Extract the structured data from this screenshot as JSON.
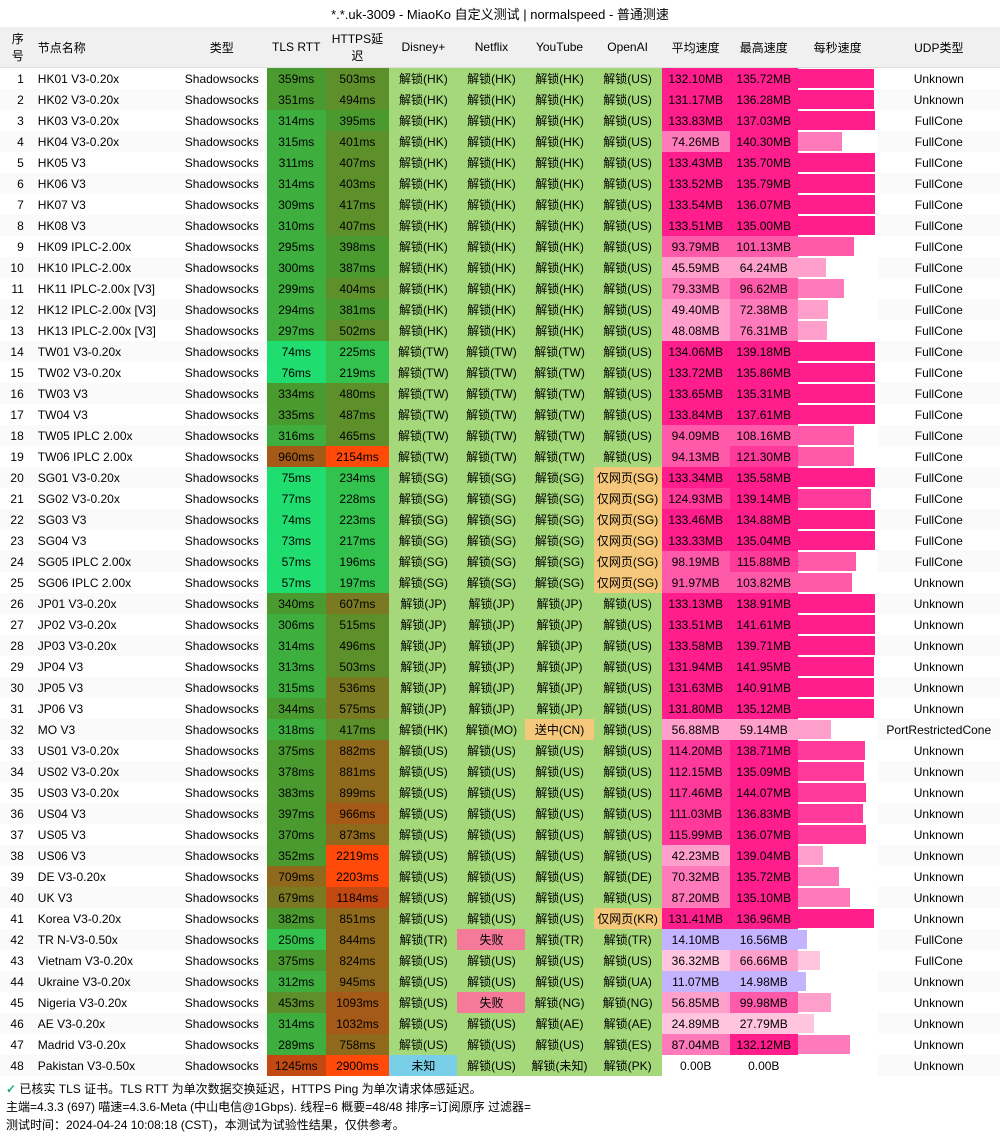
{
  "title": "*.*.uk-3009 - MiaoKo 自定义测试 | normalspeed - 普通测速",
  "headers": [
    "序号",
    "节点名称",
    "类型",
    "TLS RTT",
    "HTTPS延迟",
    "Disney+",
    "Netflix",
    "YouTube",
    "OpenAI",
    "平均速度",
    "最高速度",
    "每秒速度",
    "UDP类型"
  ],
  "colors": {
    "latency_scale": [
      {
        "max": 100,
        "bg": "#1fdd6e"
      },
      {
        "max": 260,
        "bg": "#32c24d"
      },
      {
        "max": 320,
        "bg": "#3eae3e"
      },
      {
        "max": 400,
        "bg": "#4a9a30"
      },
      {
        "max": 520,
        "bg": "#5d8f2b"
      },
      {
        "max": 700,
        "bg": "#7a7a23"
      },
      {
        "max": 950,
        "bg": "#8f6a1d"
      },
      {
        "max": 1100,
        "bg": "#a55a17"
      },
      {
        "max": 1300,
        "bg": "#c24a12"
      },
      {
        "max": 99999,
        "bg": "#ff4a0a"
      }
    ],
    "unlock_ok": "#a5d87a",
    "unlock_web": "#f5c77a",
    "unlock_fail": "#f57a9a",
    "unlock_mid": "#c5e59a",
    "unlock_unknown": "#7acfe8",
    "speed_scale": [
      {
        "min": 130,
        "bg": "#ff1e8c"
      },
      {
        "min": 110,
        "bg": "#ff3a9a"
      },
      {
        "min": 90,
        "bg": "#ff5aaa"
      },
      {
        "min": 70,
        "bg": "#ff7aba"
      },
      {
        "min": 40,
        "bg": "#ffa0cc"
      },
      {
        "min": 20,
        "bg": "#ffc4de"
      },
      {
        "min": 10,
        "bg": "#c4b4ff"
      },
      {
        "min": 0.01,
        "bg": "#e0d8ff"
      },
      {
        "min": 0,
        "bg": "#ffffff"
      }
    ],
    "chart_bar": "#ff1e8c"
  },
  "footer": {
    "tls_note": "已核实 TLS 证书。TLS RTT 为单次数据交换延迟，HTTPS Ping 为单次请求体感延迟。",
    "env": "主端=4.3.3 (697) 喵速=4.3.6-Meta (中山电信@1Gbps). 线程=6 概要=48/48 排序=订阅原序 过滤器=",
    "time": "测试时间：2024-04-24 10:08:18 (CST)，本测试为试验性结果，仅供参考。"
  },
  "rows": [
    {
      "i": 1,
      "name": "HK01 V3-0.20x",
      "type": "Shadowsocks",
      "tls": 359,
      "https": 503,
      "d": "解锁(HK)",
      "n": "解锁(HK)",
      "y": "解锁(HK)",
      "o": "解锁(US)",
      "avg": 132.1,
      "max": 135.72,
      "chart": 96,
      "udp": "Unknown"
    },
    {
      "i": 2,
      "name": "HK02 V3-0.20x",
      "type": "Shadowsocks",
      "tls": 351,
      "https": 494,
      "d": "解锁(HK)",
      "n": "解锁(HK)",
      "y": "解锁(HK)",
      "o": "解锁(US)",
      "avg": 131.17,
      "max": 136.28,
      "chart": 95,
      "udp": "Unknown"
    },
    {
      "i": 3,
      "name": "HK03 V3-0.20x",
      "type": "Shadowsocks",
      "tls": 314,
      "https": 395,
      "d": "解锁(HK)",
      "n": "解锁(HK)",
      "y": "解锁(HK)",
      "o": "解锁(US)",
      "avg": 133.83,
      "max": 137.03,
      "chart": 97,
      "udp": "FullCone"
    },
    {
      "i": 4,
      "name": "HK04 V3-0.20x",
      "type": "Shadowsocks",
      "tls": 315,
      "https": 401,
      "d": "解锁(HK)",
      "n": "解锁(HK)",
      "y": "解锁(HK)",
      "o": "解锁(US)",
      "avg": 74.26,
      "max": 140.3,
      "chart": 55,
      "udp": "FullCone"
    },
    {
      "i": 5,
      "name": "HK05 V3",
      "type": "Shadowsocks",
      "tls": 311,
      "https": 407,
      "d": "解锁(HK)",
      "n": "解锁(HK)",
      "y": "解锁(HK)",
      "o": "解锁(US)",
      "avg": 133.43,
      "max": 135.7,
      "chart": 97,
      "udp": "FullCone"
    },
    {
      "i": 6,
      "name": "HK06 V3",
      "type": "Shadowsocks",
      "tls": 314,
      "https": 403,
      "d": "解锁(HK)",
      "n": "解锁(HK)",
      "y": "解锁(HK)",
      "o": "解锁(US)",
      "avg": 133.52,
      "max": 135.79,
      "chart": 97,
      "udp": "FullCone"
    },
    {
      "i": 7,
      "name": "HK07 V3",
      "type": "Shadowsocks",
      "tls": 309,
      "https": 417,
      "d": "解锁(HK)",
      "n": "解锁(HK)",
      "y": "解锁(HK)",
      "o": "解锁(US)",
      "avg": 133.54,
      "max": 136.07,
      "chart": 97,
      "udp": "FullCone"
    },
    {
      "i": 8,
      "name": "HK08 V3",
      "type": "Shadowsocks",
      "tls": 310,
      "https": 407,
      "d": "解锁(HK)",
      "n": "解锁(HK)",
      "y": "解锁(HK)",
      "o": "解锁(US)",
      "avg": 133.51,
      "max": 135.0,
      "chart": 97,
      "udp": "FullCone"
    },
    {
      "i": 9,
      "name": "HK09 IPLC-2.00x",
      "type": "Shadowsocks",
      "tls": 295,
      "https": 398,
      "d": "解锁(HK)",
      "n": "解锁(HK)",
      "y": "解锁(HK)",
      "o": "解锁(US)",
      "avg": 93.79,
      "max": 101.13,
      "chart": 70,
      "udp": "FullCone"
    },
    {
      "i": 10,
      "name": "HK10 IPLC-2.00x",
      "type": "Shadowsocks",
      "tls": 300,
      "https": 387,
      "d": "解锁(HK)",
      "n": "解锁(HK)",
      "y": "解锁(HK)",
      "o": "解锁(US)",
      "avg": 45.59,
      "max": 64.24,
      "chart": 35,
      "udp": "FullCone"
    },
    {
      "i": 11,
      "name": "HK11 IPLC-2.00x [V3]",
      "type": "Shadowsocks",
      "tls": 299,
      "https": 404,
      "d": "解锁(HK)",
      "n": "解锁(HK)",
      "y": "解锁(HK)",
      "o": "解锁(US)",
      "avg": 79.33,
      "max": 96.62,
      "chart": 58,
      "udp": "FullCone"
    },
    {
      "i": 12,
      "name": "HK12 IPLC-2.00x [V3]",
      "type": "Shadowsocks",
      "tls": 294,
      "https": 381,
      "d": "解锁(HK)",
      "n": "解锁(HK)",
      "y": "解锁(HK)",
      "o": "解锁(US)",
      "avg": 49.4,
      "max": 72.38,
      "chart": 38,
      "udp": "FullCone"
    },
    {
      "i": 13,
      "name": "HK13 IPLC-2.00x [V3]",
      "type": "Shadowsocks",
      "tls": 297,
      "https": 502,
      "d": "解锁(HK)",
      "n": "解锁(HK)",
      "y": "解锁(HK)",
      "o": "解锁(US)",
      "avg": 48.08,
      "max": 76.31,
      "chart": 37,
      "udp": "FullCone"
    },
    {
      "i": 14,
      "name": "TW01 V3-0.20x",
      "type": "Shadowsocks",
      "tls": 74,
      "https": 225,
      "d": "解锁(TW)",
      "n": "解锁(TW)",
      "y": "解锁(TW)",
      "o": "解锁(US)",
      "avg": 134.06,
      "max": 139.18,
      "chart": 97,
      "udp": "FullCone"
    },
    {
      "i": 15,
      "name": "TW02 V3-0.20x",
      "type": "Shadowsocks",
      "tls": 76,
      "https": 219,
      "d": "解锁(TW)",
      "n": "解锁(TW)",
      "y": "解锁(TW)",
      "o": "解锁(US)",
      "avg": 133.72,
      "max": 135.86,
      "chart": 97,
      "udp": "FullCone"
    },
    {
      "i": 16,
      "name": "TW03 V3",
      "type": "Shadowsocks",
      "tls": 334,
      "https": 480,
      "d": "解锁(TW)",
      "n": "解锁(TW)",
      "y": "解锁(TW)",
      "o": "解锁(US)",
      "avg": 133.65,
      "max": 135.31,
      "chart": 97,
      "udp": "FullCone"
    },
    {
      "i": 17,
      "name": "TW04 V3",
      "type": "Shadowsocks",
      "tls": 335,
      "https": 487,
      "d": "解锁(TW)",
      "n": "解锁(TW)",
      "y": "解锁(TW)",
      "o": "解锁(US)",
      "avg": 133.84,
      "max": 137.61,
      "chart": 97,
      "udp": "FullCone"
    },
    {
      "i": 18,
      "name": "TW05 IPLC 2.00x",
      "type": "Shadowsocks",
      "tls": 316,
      "https": 465,
      "d": "解锁(TW)",
      "n": "解锁(TW)",
      "y": "解锁(TW)",
      "o": "解锁(US)",
      "avg": 94.09,
      "max": 108.16,
      "chart": 70,
      "udp": "FullCone"
    },
    {
      "i": 19,
      "name": "TW06 IPLC 2.00x",
      "type": "Shadowsocks",
      "tls": 960,
      "https": 2154,
      "d": "解锁(TW)",
      "n": "解锁(TW)",
      "y": "解锁(TW)",
      "o": "解锁(US)",
      "avg": 94.13,
      "max": 121.3,
      "chart": 70,
      "udp": "FullCone"
    },
    {
      "i": 20,
      "name": "SG01 V3-0.20x",
      "type": "Shadowsocks",
      "tls": 75,
      "https": 234,
      "d": "解锁(SG)",
      "n": "解锁(SG)",
      "y": "解锁(SG)",
      "o": "仅网页(SG)",
      "avg": 133.34,
      "max": 135.58,
      "chart": 97,
      "udp": "FullCone"
    },
    {
      "i": 21,
      "name": "SG02 V3-0.20x",
      "type": "Shadowsocks",
      "tls": 77,
      "https": 228,
      "d": "解锁(SG)",
      "n": "解锁(SG)",
      "y": "解锁(SG)",
      "o": "仅网页(SG)",
      "avg": 124.93,
      "max": 139.14,
      "chart": 92,
      "udp": "FullCone"
    },
    {
      "i": 22,
      "name": "SG03 V3",
      "type": "Shadowsocks",
      "tls": 74,
      "https": 223,
      "d": "解锁(SG)",
      "n": "解锁(SG)",
      "y": "解锁(SG)",
      "o": "仅网页(SG)",
      "avg": 133.46,
      "max": 134.88,
      "chart": 97,
      "udp": "FullCone"
    },
    {
      "i": 23,
      "name": "SG04 V3",
      "type": "Shadowsocks",
      "tls": 73,
      "https": 217,
      "d": "解锁(SG)",
      "n": "解锁(SG)",
      "y": "解锁(SG)",
      "o": "仅网页(SG)",
      "avg": 133.33,
      "max": 135.04,
      "chart": 97,
      "udp": "FullCone"
    },
    {
      "i": 24,
      "name": "SG05 IPLC 2.00x",
      "type": "Shadowsocks",
      "tls": 57,
      "https": 196,
      "d": "解锁(SG)",
      "n": "解锁(SG)",
      "y": "解锁(SG)",
      "o": "仅网页(SG)",
      "avg": 98.19,
      "max": 115.88,
      "chart": 73,
      "udp": "FullCone"
    },
    {
      "i": 25,
      "name": "SG06 IPLC 2.00x",
      "type": "Shadowsocks",
      "tls": 57,
      "https": 197,
      "d": "解锁(SG)",
      "n": "解锁(SG)",
      "y": "解锁(SG)",
      "o": "仅网页(SG)",
      "avg": 91.97,
      "max": 103.82,
      "chart": 68,
      "udp": "Unknown"
    },
    {
      "i": 26,
      "name": "JP01 V3-0.20x",
      "type": "Shadowsocks",
      "tls": 340,
      "https": 607,
      "d": "解锁(JP)",
      "n": "解锁(JP)",
      "y": "解锁(JP)",
      "o": "解锁(US)",
      "avg": 133.13,
      "max": 138.91,
      "chart": 97,
      "udp": "Unknown"
    },
    {
      "i": 27,
      "name": "JP02 V3-0.20x",
      "type": "Shadowsocks",
      "tls": 306,
      "https": 515,
      "d": "解锁(JP)",
      "n": "解锁(JP)",
      "y": "解锁(JP)",
      "o": "解锁(US)",
      "avg": 133.51,
      "max": 141.61,
      "chart": 97,
      "udp": "Unknown"
    },
    {
      "i": 28,
      "name": "JP03 V3-0.20x",
      "type": "Shadowsocks",
      "tls": 314,
      "https": 496,
      "d": "解锁(JP)",
      "n": "解锁(JP)",
      "y": "解锁(JP)",
      "o": "解锁(US)",
      "avg": 133.58,
      "max": 139.71,
      "chart": 97,
      "udp": "Unknown"
    },
    {
      "i": 29,
      "name": "JP04 V3",
      "type": "Shadowsocks",
      "tls": 313,
      "https": 503,
      "d": "解锁(JP)",
      "n": "解锁(JP)",
      "y": "解锁(JP)",
      "o": "解锁(US)",
      "avg": 131.94,
      "max": 141.95,
      "chart": 96,
      "udp": "Unknown"
    },
    {
      "i": 30,
      "name": "JP05 V3",
      "type": "Shadowsocks",
      "tls": 315,
      "https": 536,
      "d": "解锁(JP)",
      "n": "解锁(JP)",
      "y": "解锁(JP)",
      "o": "解锁(US)",
      "avg": 131.63,
      "max": 140.91,
      "chart": 96,
      "udp": "Unknown"
    },
    {
      "i": 31,
      "name": "JP06 V3",
      "type": "Shadowsocks",
      "tls": 344,
      "https": 575,
      "d": "解锁(JP)",
      "n": "解锁(JP)",
      "y": "解锁(JP)",
      "o": "解锁(US)",
      "avg": 131.8,
      "max": 135.12,
      "chart": 96,
      "udp": "Unknown"
    },
    {
      "i": 32,
      "name": "MO V3",
      "type": "Shadowsocks",
      "tls": 318,
      "https": 417,
      "d": "解锁(HK)",
      "n": "解锁(MO)",
      "y": "送中(CN)",
      "o": "解锁(US)",
      "avg": 56.88,
      "max": 59.14,
      "chart": 42,
      "udp": "PortRestrictedCone"
    },
    {
      "i": 33,
      "name": "US01 V3-0.20x",
      "type": "Shadowsocks",
      "tls": 375,
      "https": 882,
      "d": "解锁(US)",
      "n": "解锁(US)",
      "y": "解锁(US)",
      "o": "解锁(US)",
      "avg": 114.2,
      "max": 138.71,
      "chart": 84,
      "udp": "Unknown"
    },
    {
      "i": 34,
      "name": "US02 V3-0.20x",
      "type": "Shadowsocks",
      "tls": 378,
      "https": 881,
      "d": "解锁(US)",
      "n": "解锁(US)",
      "y": "解锁(US)",
      "o": "解锁(US)",
      "avg": 112.15,
      "max": 135.09,
      "chart": 83,
      "udp": "Unknown"
    },
    {
      "i": 35,
      "name": "US03 V3-0.20x",
      "type": "Shadowsocks",
      "tls": 383,
      "https": 899,
      "d": "解锁(US)",
      "n": "解锁(US)",
      "y": "解锁(US)",
      "o": "解锁(US)",
      "avg": 117.46,
      "max": 144.07,
      "chart": 86,
      "udp": "Unknown"
    },
    {
      "i": 36,
      "name": "US04 V3",
      "type": "Shadowsocks",
      "tls": 397,
      "https": 966,
      "d": "解锁(US)",
      "n": "解锁(US)",
      "y": "解锁(US)",
      "o": "解锁(US)",
      "avg": 111.03,
      "max": 136.83,
      "chart": 82,
      "udp": "Unknown"
    },
    {
      "i": 37,
      "name": "US05 V3",
      "type": "Shadowsocks",
      "tls": 370,
      "https": 873,
      "d": "解锁(US)",
      "n": "解锁(US)",
      "y": "解锁(US)",
      "o": "解锁(US)",
      "avg": 115.99,
      "max": 136.07,
      "chart": 85,
      "udp": "Unknown"
    },
    {
      "i": 38,
      "name": "US06 V3",
      "type": "Shadowsocks",
      "tls": 352,
      "https": 2219,
      "d": "解锁(US)",
      "n": "解锁(US)",
      "y": "解锁(US)",
      "o": "解锁(US)",
      "avg": 42.23,
      "max": 139.04,
      "chart": 32,
      "udp": "Unknown"
    },
    {
      "i": 39,
      "name": "DE V3-0.20x",
      "type": "Shadowsocks",
      "tls": 709,
      "https": 2203,
      "d": "解锁(US)",
      "n": "解锁(US)",
      "y": "解锁(US)",
      "o": "解锁(DE)",
      "avg": 70.32,
      "max": 135.72,
      "chart": 52,
      "udp": "Unknown"
    },
    {
      "i": 40,
      "name": "UK V3",
      "type": "Shadowsocks",
      "tls": 679,
      "https": 1184,
      "d": "解锁(US)",
      "n": "解锁(US)",
      "y": "解锁(US)",
      "o": "解锁(US)",
      "avg": 87.2,
      "max": 135.1,
      "chart": 65,
      "udp": "Unknown"
    },
    {
      "i": 41,
      "name": "Korea V3-0.20x",
      "type": "Shadowsocks",
      "tls": 382,
      "https": 851,
      "d": "解锁(US)",
      "n": "解锁(US)",
      "y": "解锁(US)",
      "o": "仅网页(KR)",
      "avg": 131.41,
      "max": 136.96,
      "chart": 96,
      "udp": "Unknown"
    },
    {
      "i": 42,
      "name": "TR N-V3-0.50x",
      "type": "Shadowsocks",
      "tls": 250,
      "https": 844,
      "d": "解锁(TR)",
      "n": "失败",
      "y": "解锁(TR)",
      "o": "解锁(TR)",
      "avg": 14.1,
      "max": 16.56,
      "chart": 12,
      "udp": "FullCone"
    },
    {
      "i": 43,
      "name": "Vietnam V3-0.20x",
      "type": "Shadowsocks",
      "tls": 375,
      "https": 824,
      "d": "解锁(US)",
      "n": "解锁(US)",
      "y": "解锁(US)",
      "o": "解锁(US)",
      "avg": 36.32,
      "max": 66.66,
      "chart": 28,
      "udp": "FullCone"
    },
    {
      "i": 44,
      "name": "Ukraine V3-0.20x",
      "type": "Shadowsocks",
      "tls": 312,
      "https": 945,
      "d": "解锁(US)",
      "n": "解锁(US)",
      "y": "解锁(US)",
      "o": "解锁(UA)",
      "avg": 11.07,
      "max": 14.98,
      "chart": 10,
      "udp": "Unknown"
    },
    {
      "i": 45,
      "name": "Nigeria V3-0.20x",
      "type": "Shadowsocks",
      "tls": 453,
      "https": 1093,
      "d": "解锁(US)",
      "n": "失败",
      "y": "解锁(NG)",
      "o": "解锁(NG)",
      "avg": 56.85,
      "max": 99.98,
      "chart": 42,
      "udp": "Unknown"
    },
    {
      "i": 46,
      "name": "AE V3-0.20x",
      "type": "Shadowsocks",
      "tls": 314,
      "https": 1032,
      "d": "解锁(US)",
      "n": "解锁(US)",
      "y": "解锁(AE)",
      "o": "解锁(AE)",
      "avg": 24.89,
      "max": 27.79,
      "chart": 20,
      "udp": "Unknown"
    },
    {
      "i": 47,
      "name": "Madrid V3-0.20x",
      "type": "Shadowsocks",
      "tls": 289,
      "https": 758,
      "d": "解锁(US)",
      "n": "解锁(US)",
      "y": "解锁(US)",
      "o": "解锁(ES)",
      "avg": 87.04,
      "max": 132.12,
      "chart": 65,
      "udp": "Unknown"
    },
    {
      "i": 48,
      "name": "Pakistan V3-0.50x",
      "type": "Shadowsocks",
      "tls": 1245,
      "https": 2900,
      "d": "未知",
      "n": "解锁(US)",
      "y": "解锁(未知)",
      "o": "解锁(PK)",
      "avg": 0,
      "max": 0,
      "chart": 0,
      "udp": "Unknown"
    }
  ]
}
